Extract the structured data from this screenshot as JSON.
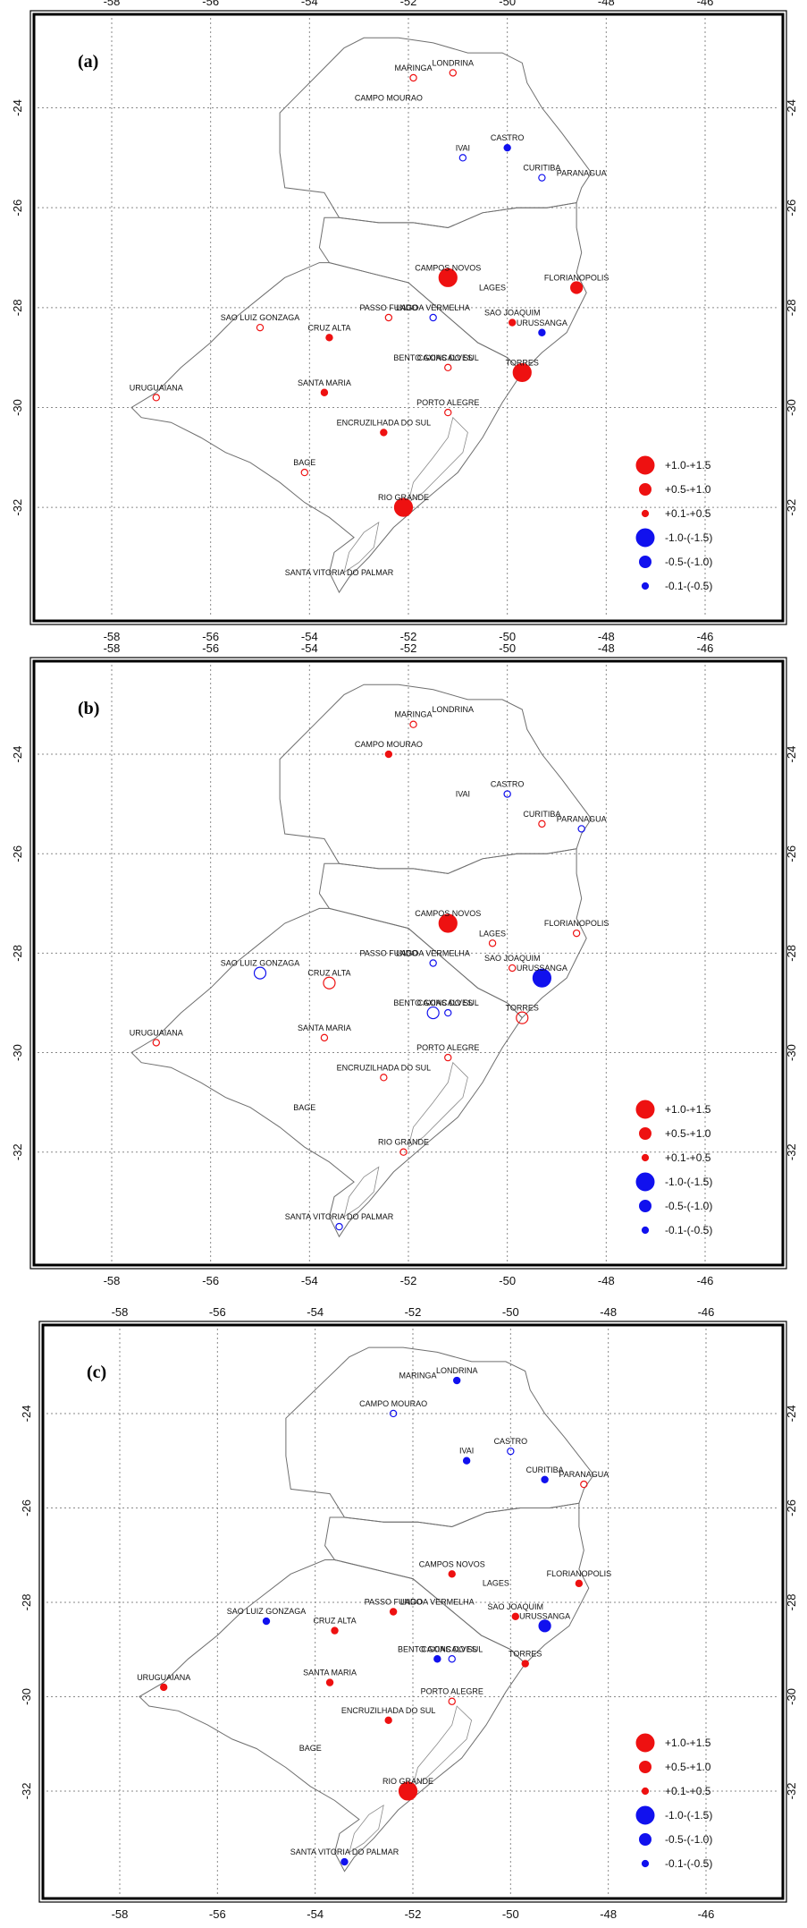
{
  "panels": [
    {
      "label": "(a)",
      "stations": [
        {
          "name": "LONDRINA",
          "lon": -51.1,
          "lat": -23.3,
          "value": 0.3,
          "filled": false
        },
        {
          "name": "MARINGA",
          "lon": -51.9,
          "lat": -23.4,
          "value": 0.3,
          "filled": false
        },
        {
          "name": "CAMPO MOURAO",
          "lon": -52.4,
          "lat": -24.0,
          "value": null,
          "filled": false
        },
        {
          "name": "CASTRO",
          "lon": -50.0,
          "lat": -24.8,
          "value": -0.4,
          "filled": true
        },
        {
          "name": "IVAI",
          "lon": -50.9,
          "lat": -25.0,
          "value": -0.4,
          "filled": false
        },
        {
          "name": "CURITIBA",
          "lon": -49.3,
          "lat": -25.4,
          "value": -0.3,
          "filled": false
        },
        {
          "name": "PARANAGUA",
          "lon": -48.5,
          "lat": -25.5,
          "value": null,
          "filled": false
        },
        {
          "name": "CAMPOS NOVOS",
          "lon": -51.2,
          "lat": -27.4,
          "value": 1.1,
          "filled": true
        },
        {
          "name": "FLORIANOPOLIS",
          "lon": -48.6,
          "lat": -27.6,
          "value": 0.8,
          "filled": true
        },
        {
          "name": "LAGES",
          "lon": -50.3,
          "lat": -27.8,
          "value": null,
          "filled": false
        },
        {
          "name": "SAO JOAQUIM",
          "lon": -49.9,
          "lat": -28.3,
          "value": 0.4,
          "filled": true
        },
        {
          "name": "URUSSANGA",
          "lon": -49.3,
          "lat": -28.5,
          "value": -0.4,
          "filled": true
        },
        {
          "name": "PASSO FUNDO",
          "lon": -52.4,
          "lat": -28.2,
          "value": 0.3,
          "filled": false
        },
        {
          "name": "LAGOA VERMELHA",
          "lon": -51.5,
          "lat": -28.2,
          "value": -0.4,
          "filled": false
        },
        {
          "name": "SAO LUIZ GONZAGA",
          "lon": -55.0,
          "lat": -28.4,
          "value": 0.4,
          "filled": false
        },
        {
          "name": "CRUZ ALTA",
          "lon": -53.6,
          "lat": -28.6,
          "value": 0.4,
          "filled": true
        },
        {
          "name": "BENTO GONCALVES",
          "lon": -51.5,
          "lat": -29.2,
          "value": null,
          "filled": false
        },
        {
          "name": "CAXIAS DO SUL",
          "lon": -51.2,
          "lat": -29.2,
          "value": 0.3,
          "filled": false
        },
        {
          "name": "TORRES",
          "lon": -49.7,
          "lat": -29.3,
          "value": 1.1,
          "filled": true
        },
        {
          "name": "URUGUAIANA",
          "lon": -57.1,
          "lat": -29.8,
          "value": 0.3,
          "filled": false
        },
        {
          "name": "SANTA MARIA",
          "lon": -53.7,
          "lat": -29.7,
          "value": 0.4,
          "filled": true
        },
        {
          "name": "PORTO ALEGRE",
          "lon": -51.2,
          "lat": -30.1,
          "value": 0.3,
          "filled": false
        },
        {
          "name": "ENCRUZILHADA DO SUL",
          "lon": -52.5,
          "lat": -30.5,
          "value": 0.4,
          "filled": true
        },
        {
          "name": "BAGE",
          "lon": -54.1,
          "lat": -31.3,
          "value": 0.3,
          "filled": false
        },
        {
          "name": "RIO GRANDE",
          "lon": -52.1,
          "lat": -32.0,
          "value": 1.0,
          "filled": true
        },
        {
          "name": "SANTA VITORIA DO PALMAR",
          "lon": -53.4,
          "lat": -33.5,
          "value": null,
          "filled": false
        }
      ]
    },
    {
      "label": "(b)",
      "stations": [
        {
          "name": "LONDRINA",
          "lon": -51.1,
          "lat": -23.3,
          "value": null,
          "filled": false
        },
        {
          "name": "MARINGA",
          "lon": -51.9,
          "lat": -23.4,
          "value": 0.3,
          "filled": false
        },
        {
          "name": "CAMPO MOURAO",
          "lon": -52.4,
          "lat": -24.0,
          "value": 0.4,
          "filled": true
        },
        {
          "name": "CASTRO",
          "lon": -50.0,
          "lat": -24.8,
          "value": -0.4,
          "filled": false
        },
        {
          "name": "IVAI",
          "lon": -50.9,
          "lat": -25.0,
          "value": null,
          "filled": false
        },
        {
          "name": "CURITIBA",
          "lon": -49.3,
          "lat": -25.4,
          "value": 0.3,
          "filled": false
        },
        {
          "name": "PARANAGUA",
          "lon": -48.5,
          "lat": -25.5,
          "value": -0.4,
          "filled": false
        },
        {
          "name": "CAMPOS NOVOS",
          "lon": -51.2,
          "lat": -27.4,
          "value": 1.2,
          "filled": true
        },
        {
          "name": "FLORIANOPOLIS",
          "lon": -48.6,
          "lat": -27.6,
          "value": 0.3,
          "filled": false
        },
        {
          "name": "LAGES",
          "lon": -50.3,
          "lat": -27.8,
          "value": 0.3,
          "filled": false
        },
        {
          "name": "SAO JOAQUIM",
          "lon": -49.9,
          "lat": -28.3,
          "value": 0.3,
          "filled": false
        },
        {
          "name": "URUSSANGA",
          "lon": -49.3,
          "lat": -28.5,
          "value": -1.2,
          "filled": true
        },
        {
          "name": "PASSO FUNDO",
          "lon": -52.4,
          "lat": -28.2,
          "value": null,
          "filled": false
        },
        {
          "name": "LAGOA VERMELHA",
          "lon": -51.5,
          "lat": -28.2,
          "value": -0.4,
          "filled": false
        },
        {
          "name": "SAO LUIZ GONZAGA",
          "lon": -55.0,
          "lat": -28.4,
          "value": -0.8,
          "filled": false
        },
        {
          "name": "CRUZ ALTA",
          "lon": -53.6,
          "lat": -28.6,
          "value": 0.8,
          "filled": false
        },
        {
          "name": "BENTO GONCALVES",
          "lon": -51.5,
          "lat": -29.2,
          "value": -0.8,
          "filled": false
        },
        {
          "name": "CAXIAS DO SUL",
          "lon": -51.2,
          "lat": -29.2,
          "value": -0.4,
          "filled": false
        },
        {
          "name": "TORRES",
          "lon": -49.7,
          "lat": -29.3,
          "value": 0.8,
          "filled": false
        },
        {
          "name": "URUGUAIANA",
          "lon": -57.1,
          "lat": -29.8,
          "value": 0.3,
          "filled": false
        },
        {
          "name": "SANTA MARIA",
          "lon": -53.7,
          "lat": -29.7,
          "value": 0.3,
          "filled": false
        },
        {
          "name": "PORTO ALEGRE",
          "lon": -51.2,
          "lat": -30.1,
          "value": 0.3,
          "filled": false
        },
        {
          "name": "ENCRUZILHADA DO SUL",
          "lon": -52.5,
          "lat": -30.5,
          "value": 0.3,
          "filled": false
        },
        {
          "name": "BAGE",
          "lon": -54.1,
          "lat": -31.3,
          "value": null,
          "filled": false
        },
        {
          "name": "RIO GRANDE",
          "lon": -52.1,
          "lat": -32.0,
          "value": 0.3,
          "filled": false
        },
        {
          "name": "SANTA VITORIA DO PALMAR",
          "lon": -53.4,
          "lat": -33.5,
          "value": -0.4,
          "filled": false
        }
      ]
    },
    {
      "label": "(c)",
      "stations": [
        {
          "name": "LONDRINA",
          "lon": -51.1,
          "lat": -23.3,
          "value": -0.4,
          "filled": true
        },
        {
          "name": "MARINGA",
          "lon": -51.9,
          "lat": -23.4,
          "value": null,
          "filled": false
        },
        {
          "name": "CAMPO MOURAO",
          "lon": -52.4,
          "lat": -24.0,
          "value": -0.4,
          "filled": false
        },
        {
          "name": "CASTRO",
          "lon": -50.0,
          "lat": -24.8,
          "value": -0.4,
          "filled": false
        },
        {
          "name": "IVAI",
          "lon": -50.9,
          "lat": -25.0,
          "value": -0.4,
          "filled": true
        },
        {
          "name": "CURITIBA",
          "lon": -49.3,
          "lat": -25.4,
          "value": -0.4,
          "filled": true
        },
        {
          "name": "PARANAGUA",
          "lon": -48.5,
          "lat": -25.5,
          "value": 0.3,
          "filled": false
        },
        {
          "name": "CAMPOS NOVOS",
          "lon": -51.2,
          "lat": -27.4,
          "value": 0.4,
          "filled": true
        },
        {
          "name": "FLORIANOPOLIS",
          "lon": -48.6,
          "lat": -27.6,
          "value": 0.4,
          "filled": true
        },
        {
          "name": "LAGES",
          "lon": -50.3,
          "lat": -27.8,
          "value": null,
          "filled": false
        },
        {
          "name": "SAO JOAQUIM",
          "lon": -49.9,
          "lat": -28.3,
          "value": 0.4,
          "filled": true
        },
        {
          "name": "URUSSANGA",
          "lon": -49.3,
          "lat": -28.5,
          "value": -0.8,
          "filled": true
        },
        {
          "name": "PASSO FUNDO",
          "lon": -52.4,
          "lat": -28.2,
          "value": 0.4,
          "filled": true
        },
        {
          "name": "LAGOA VERMELHA",
          "lon": -51.5,
          "lat": -28.2,
          "value": null,
          "filled": false
        },
        {
          "name": "SAO LUIZ GONZAGA",
          "lon": -55.0,
          "lat": -28.4,
          "value": -0.4,
          "filled": true
        },
        {
          "name": "CRUZ ALTA",
          "lon": -53.6,
          "lat": -28.6,
          "value": 0.4,
          "filled": true
        },
        {
          "name": "BENTO GONCALVES",
          "lon": -51.5,
          "lat": -29.2,
          "value": -0.4,
          "filled": true
        },
        {
          "name": "CAXIAS DO SUL",
          "lon": -51.2,
          "lat": -29.2,
          "value": -0.4,
          "filled": false
        },
        {
          "name": "TORRES",
          "lon": -49.7,
          "lat": -29.3,
          "value": 0.4,
          "filled": true
        },
        {
          "name": "URUGUAIANA",
          "lon": -57.1,
          "lat": -29.8,
          "value": 0.4,
          "filled": true
        },
        {
          "name": "SANTA MARIA",
          "lon": -53.7,
          "lat": -29.7,
          "value": 0.4,
          "filled": true
        },
        {
          "name": "PORTO ALEGRE",
          "lon": -51.2,
          "lat": -30.1,
          "value": 0.3,
          "filled": false
        },
        {
          "name": "ENCRUZILHADA DO SUL",
          "lon": -52.5,
          "lat": -30.5,
          "value": 0.4,
          "filled": true
        },
        {
          "name": "BAGE",
          "lon": -54.1,
          "lat": -31.3,
          "value": null,
          "filled": false
        },
        {
          "name": "RIO GRANDE",
          "lon": -52.1,
          "lat": -32.0,
          "value": 1.3,
          "filled": true
        },
        {
          "name": "SANTA VITORIA DO PALMAR",
          "lon": -53.4,
          "lat": -33.5,
          "value": -0.4,
          "filled": true
        }
      ]
    }
  ],
  "axes": {
    "lon_ticks": [
      "-58",
      "-56",
      "-54",
      "-52",
      "-50",
      "-48",
      "-46"
    ],
    "lat_ticks": [
      "-24",
      "-26",
      "-28",
      "-30",
      "-32"
    ],
    "lon_range": [
      -59.5,
      -44.5
    ],
    "lat_range": [
      -34.2,
      -22.2
    ]
  },
  "legend": [
    {
      "label": "+1.0-+1.5",
      "sign": "pos",
      "class": 3
    },
    {
      "label": "+0.5-+1.0",
      "sign": "pos",
      "class": 2
    },
    {
      "label": "+0.1-+0.5",
      "sign": "pos",
      "class": 1
    },
    {
      "label": "-1.0-(-1.5)",
      "sign": "neg",
      "class": 3
    },
    {
      "label": "-0.5-(-1.0)",
      "sign": "neg",
      "class": 2
    },
    {
      "label": "-0.1-(-0.5)",
      "sign": "neg",
      "class": 1
    }
  ],
  "colors": {
    "positive": "#ee1111",
    "negative": "#1111ee",
    "grid": "#8a8a8a",
    "border": "#6f6f6f"
  }
}
